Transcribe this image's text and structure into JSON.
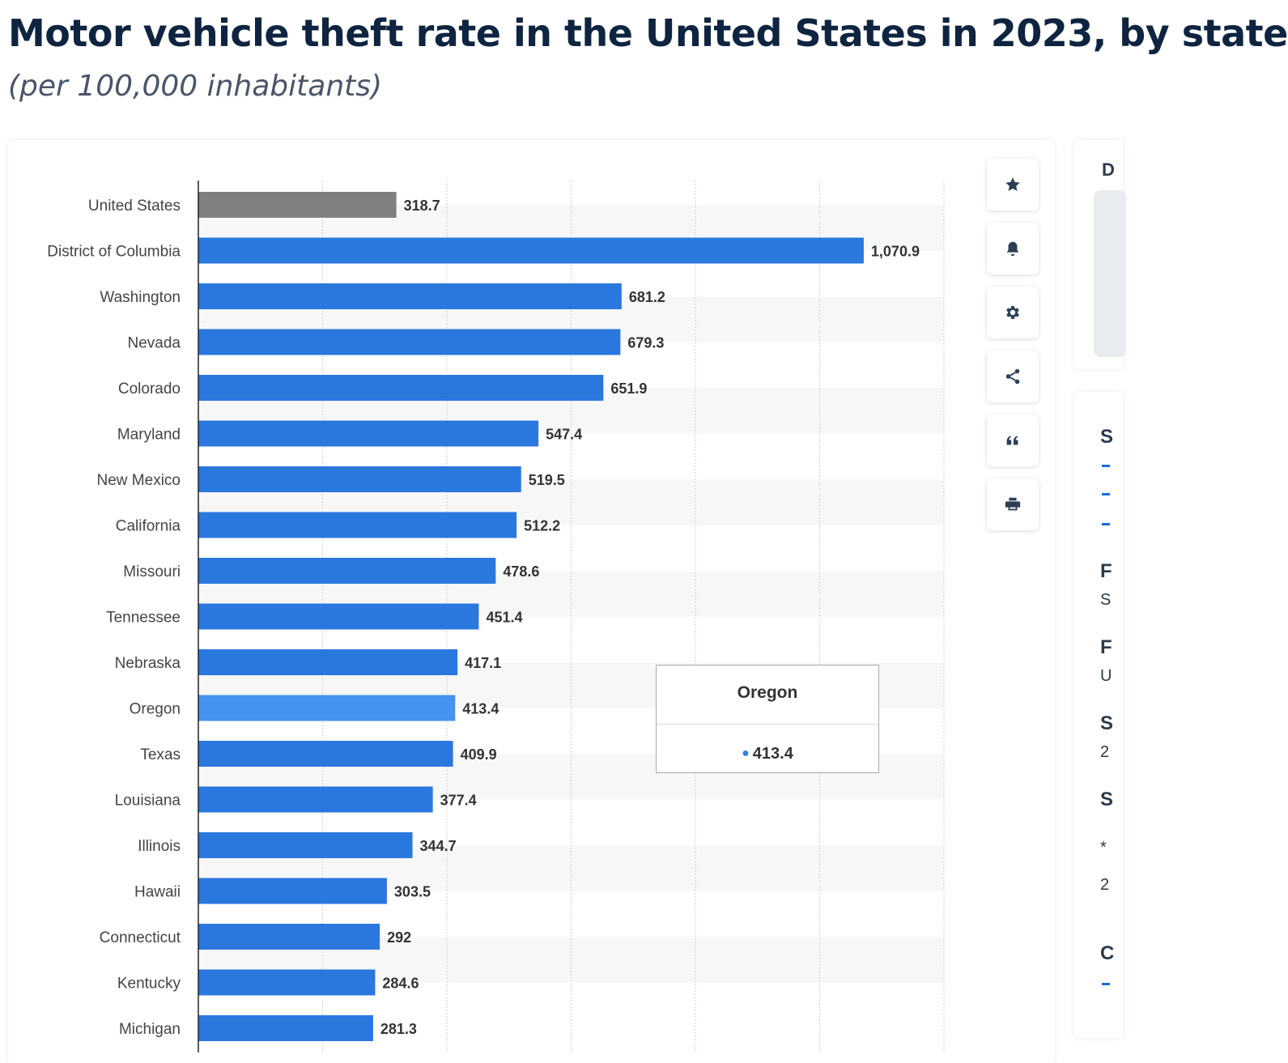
{
  "title": "Motor vehicle theft rate in the United States in 2023, by state",
  "subtitle": "(per 100,000 inhabitants)",
  "colors": {
    "bar": "#2a78de",
    "highlight_bar": "#4592f0",
    "us_bar": "#808080"
  },
  "chart_data": {
    "type": "bar",
    "orientation": "horizontal",
    "title": "Motor vehicle theft rate in the United States in 2023, by state",
    "subtitle": "(per 100,000 inhabitants)",
    "categories": [
      "United States",
      "District of Columbia",
      "Washington",
      "Nevada",
      "Colorado",
      "Maryland",
      "New Mexico",
      "California",
      "Missouri",
      "Tennessee",
      "Nebraska",
      "Oregon",
      "Texas",
      "Louisiana",
      "Illinois",
      "Hawaii",
      "Connecticut",
      "Kentucky",
      "Michigan"
    ],
    "values": [
      318.7,
      1070.9,
      681.2,
      679.3,
      651.9,
      547.4,
      519.5,
      512.2,
      478.6,
      451.4,
      417.1,
      413.4,
      409.9,
      377.4,
      344.7,
      303.5,
      292,
      284.6,
      281.3
    ],
    "value_labels": [
      "318.7",
      "1,070.9",
      "681.2",
      "679.3",
      "651.9",
      "547.4",
      "519.5",
      "512.2",
      "478.6",
      "451.4",
      "417.1",
      "413.4",
      "409.9",
      "377.4",
      "344.7",
      "303.5",
      "292",
      "284.6",
      "281.3"
    ],
    "xlim": [
      0,
      1200
    ],
    "grid": true,
    "highlighted_category": "Oregon",
    "reference_category": "United States"
  },
  "tooltip": {
    "title": "Oregon",
    "value": "413.4"
  },
  "toolbar": {
    "icons": [
      "star-icon",
      "bell-icon",
      "gear-icon",
      "share-icon",
      "quote-icon",
      "print-icon"
    ]
  },
  "side_panel": {
    "top_glyph": "D",
    "bottom_glyphs": [
      "S",
      "F",
      "S",
      "F",
      "U",
      "S",
      "2",
      "S",
      "*",
      "2",
      "C"
    ]
  }
}
